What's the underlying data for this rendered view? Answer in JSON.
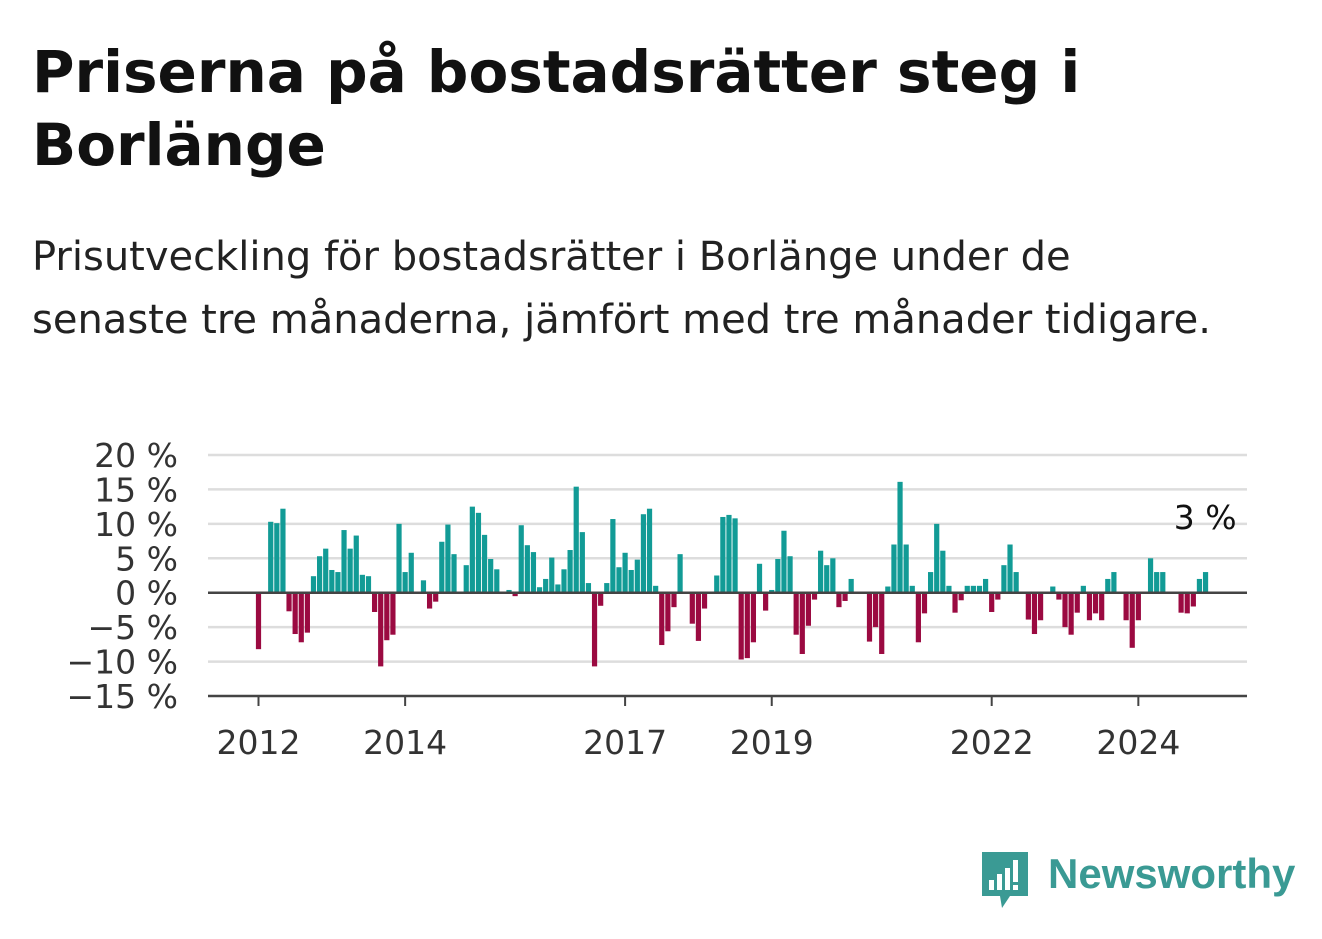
{
  "title": "Priserna på bostadsrätter steg i Borlänge",
  "subtitle": "Prisutveckling för bostadsrätter i Borlänge under de senaste tre månaderna, jämfört med tre månader tidigare.",
  "brand": {
    "name": "Newsworthy",
    "color": "#3a9a94",
    "icon": "newsworthy-logo-icon"
  },
  "colors": {
    "positive": "#129b96",
    "negative": "#9b0a41",
    "zero_line": "#444444",
    "grid": "#dddddd"
  },
  "chart_data": {
    "type": "bar",
    "title": "",
    "xlabel": "",
    "ylabel": "",
    "ylim": [
      -15,
      20
    ],
    "y_ticks": [
      20,
      15,
      10,
      5,
      0,
      -5,
      -10,
      -15
    ],
    "y_tick_labels": [
      "20 %",
      "15 %",
      "10 %",
      "5 %",
      "0 %",
      "−5 %",
      "−10 %",
      "−15 %"
    ],
    "x_tick_labels": [
      "2012",
      "2014",
      "2017",
      "2019",
      "2022",
      "2024"
    ],
    "grid": true,
    "legend": "none",
    "annotation": {
      "text": "3 %",
      "applies_to": "last value"
    },
    "series": [
      {
        "values": [
          -8.2,
          0,
          10.3,
          10.1,
          12.2,
          -2.7,
          -6.0,
          -7.2,
          -5.8,
          2.4,
          5.3,
          6.4,
          3.3,
          3.0,
          9.1,
          6.4,
          8.3,
          2.6,
          2.4,
          -2.8,
          -10.7,
          -6.9,
          -6.1,
          10.0,
          3.0,
          5.8,
          0,
          1.8,
          -2.3,
          -1.3,
          7.4,
          9.9,
          5.6,
          0,
          4.0,
          12.5,
          11.6,
          8.4,
          4.9,
          3.4,
          0,
          0.4,
          -0.5,
          9.8,
          6.9,
          5.9,
          0.8,
          2.0,
          5.1,
          1.2,
          3.4,
          6.2,
          15.4,
          8.8,
          1.4,
          -10.7,
          -1.9,
          1.4,
          10.7,
          3.7,
          5.8,
          3.3,
          4.8,
          11.4,
          12.2,
          1.0,
          -7.6,
          -5.6,
          -2.1,
          5.6,
          0,
          -4.5,
          -7.0,
          -2.3,
          0,
          2.5,
          11.0,
          11.3,
          10.8,
          -9.7,
          -9.5,
          -7.2,
          4.2,
          -2.6,
          0.4,
          4.9,
          9.0,
          5.3,
          -6.1,
          -8.9,
          -4.8,
          -1.0,
          6.1,
          4.0,
          5.0,
          -2.1,
          -1.2,
          2.0,
          0,
          0,
          -7.1,
          -5.0,
          -8.9,
          0.9,
          7.0,
          16.1,
          7.0,
          1.0,
          -7.2,
          -3.0,
          3.0,
          10.0,
          6.1,
          1.0,
          -2.9,
          -1.1,
          1.0,
          1.0,
          1.0,
          2.0,
          -2.8,
          -1.0,
          4.0,
          7.0,
          3.0,
          0,
          -3.9,
          -6.0,
          -4.0,
          0,
          0.9,
          -1.0,
          -5.0,
          -6.1,
          -2.9,
          1.0,
          -4.0,
          -3.0,
          -4.0,
          2.0,
          3.0,
          0,
          -4.0,
          -8.0,
          -4.0,
          0,
          5.0,
          3.0,
          3.0,
          0,
          0,
          -2.9,
          -3.0,
          -2.0,
          2.0,
          3.0
        ]
      }
    ]
  }
}
